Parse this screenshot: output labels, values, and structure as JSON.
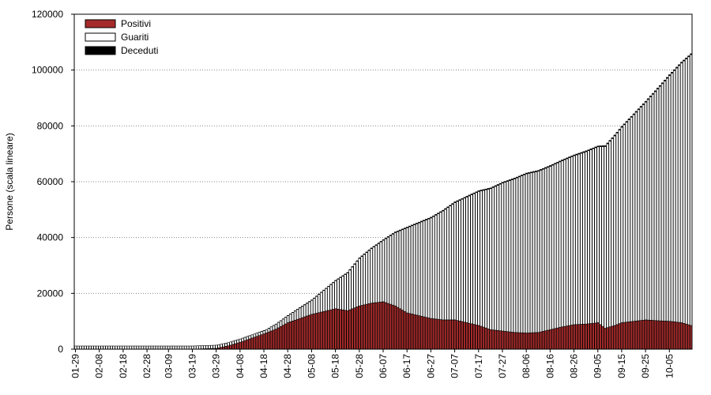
{
  "chart_data": {
    "type": "bar",
    "stacked": true,
    "title": "",
    "xlabel": "",
    "ylabel": "Persone (scala lineare)",
    "ylim": [
      0,
      120000
    ],
    "yticks": [
      "0",
      "20000",
      "40000",
      "60000",
      "80000",
      "100000",
      "120000"
    ],
    "grid": "horizontal dotted",
    "legend_position": "top-left",
    "start_date": "01-29",
    "xtick_labels": [
      "01-29",
      "02-08",
      "02-18",
      "02-28",
      "03-09",
      "03-19",
      "03-29",
      "04-08",
      "04-18",
      "04-28",
      "05-08",
      "05-18",
      "05-28",
      "06-07",
      "06-17",
      "06-27",
      "07-07",
      "07-17",
      "07-27",
      "08-06",
      "08-16",
      "08-26",
      "09-05",
      "09-15",
      "09-25",
      "10-05"
    ],
    "series": [
      {
        "name": "Positivi",
        "color": "#a52a2a",
        "anchors": [
          [
            "01-29",
            0
          ],
          [
            "03-19",
            0
          ],
          [
            "03-29",
            300
          ],
          [
            "04-03",
            1200
          ],
          [
            "04-08",
            2500
          ],
          [
            "04-13",
            4000
          ],
          [
            "04-18",
            5500
          ],
          [
            "04-23",
            7200
          ],
          [
            "04-28",
            9500
          ],
          [
            "05-03",
            11000
          ],
          [
            "05-08",
            12500
          ],
          [
            "05-13",
            13500
          ],
          [
            "05-18",
            14500
          ],
          [
            "05-23",
            13800
          ],
          [
            "05-28",
            15500
          ],
          [
            "06-02",
            16500
          ],
          [
            "06-07",
            17000
          ],
          [
            "06-12",
            15500
          ],
          [
            "06-17",
            13000
          ],
          [
            "06-22",
            12000
          ],
          [
            "06-27",
            11000
          ],
          [
            "07-02",
            10500
          ],
          [
            "07-07",
            10500
          ],
          [
            "07-12",
            9500
          ],
          [
            "07-17",
            8500
          ],
          [
            "07-22",
            7000
          ],
          [
            "07-27",
            6500
          ],
          [
            "08-01",
            6000
          ],
          [
            "08-06",
            5800
          ],
          [
            "08-11",
            6000
          ],
          [
            "08-16",
            7000
          ],
          [
            "08-21",
            8000
          ],
          [
            "08-26",
            8800
          ],
          [
            "08-31",
            9000
          ],
          [
            "09-05",
            9500
          ],
          [
            "09-08",
            7500
          ],
          [
            "09-12",
            8500
          ],
          [
            "09-15",
            9500
          ],
          [
            "09-20",
            10000
          ],
          [
            "09-25",
            10500
          ],
          [
            "09-30",
            10200
          ],
          [
            "10-05",
            10000
          ],
          [
            "10-10",
            9500
          ],
          [
            "10-14",
            8500
          ]
        ]
      },
      {
        "name": "Guariti",
        "color": "#ffffff",
        "anchors": [
          [
            "01-29",
            0
          ],
          [
            "03-19",
            0
          ],
          [
            "03-29",
            100
          ],
          [
            "04-08",
            500
          ],
          [
            "04-18",
            1000
          ],
          [
            "04-28",
            2500
          ],
          [
            "05-08",
            5000
          ],
          [
            "05-18",
            10000
          ],
          [
            "05-28",
            17000
          ],
          [
            "06-07",
            22000
          ],
          [
            "06-17",
            30500
          ],
          [
            "06-27",
            36000
          ],
          [
            "07-07",
            42000
          ],
          [
            "07-17",
            48000
          ],
          [
            "07-27",
            53000
          ],
          [
            "08-06",
            57000
          ],
          [
            "08-16",
            58500
          ],
          [
            "08-26",
            60500
          ],
          [
            "09-05",
            63000
          ],
          [
            "09-15",
            70000
          ],
          [
            "09-25",
            78000
          ],
          [
            "10-05",
            88000
          ],
          [
            "10-14",
            97000
          ]
        ]
      },
      {
        "name": "Deceduti",
        "color": "#000000",
        "anchors": [
          [
            "01-29",
            0
          ],
          [
            "03-19",
            0
          ],
          [
            "03-29",
            5
          ],
          [
            "04-08",
            30
          ],
          [
            "04-18",
            80
          ],
          [
            "04-28",
            140
          ],
          [
            "05-08",
            190
          ],
          [
            "05-18",
            230
          ],
          [
            "05-28",
            260
          ],
          [
            "06-07",
            280
          ],
          [
            "06-17",
            300
          ],
          [
            "06-27",
            310
          ],
          [
            "07-07",
            320
          ],
          [
            "07-27",
            330
          ],
          [
            "08-26",
            340
          ],
          [
            "09-25",
            360
          ],
          [
            "10-14",
            380
          ]
        ]
      }
    ]
  }
}
